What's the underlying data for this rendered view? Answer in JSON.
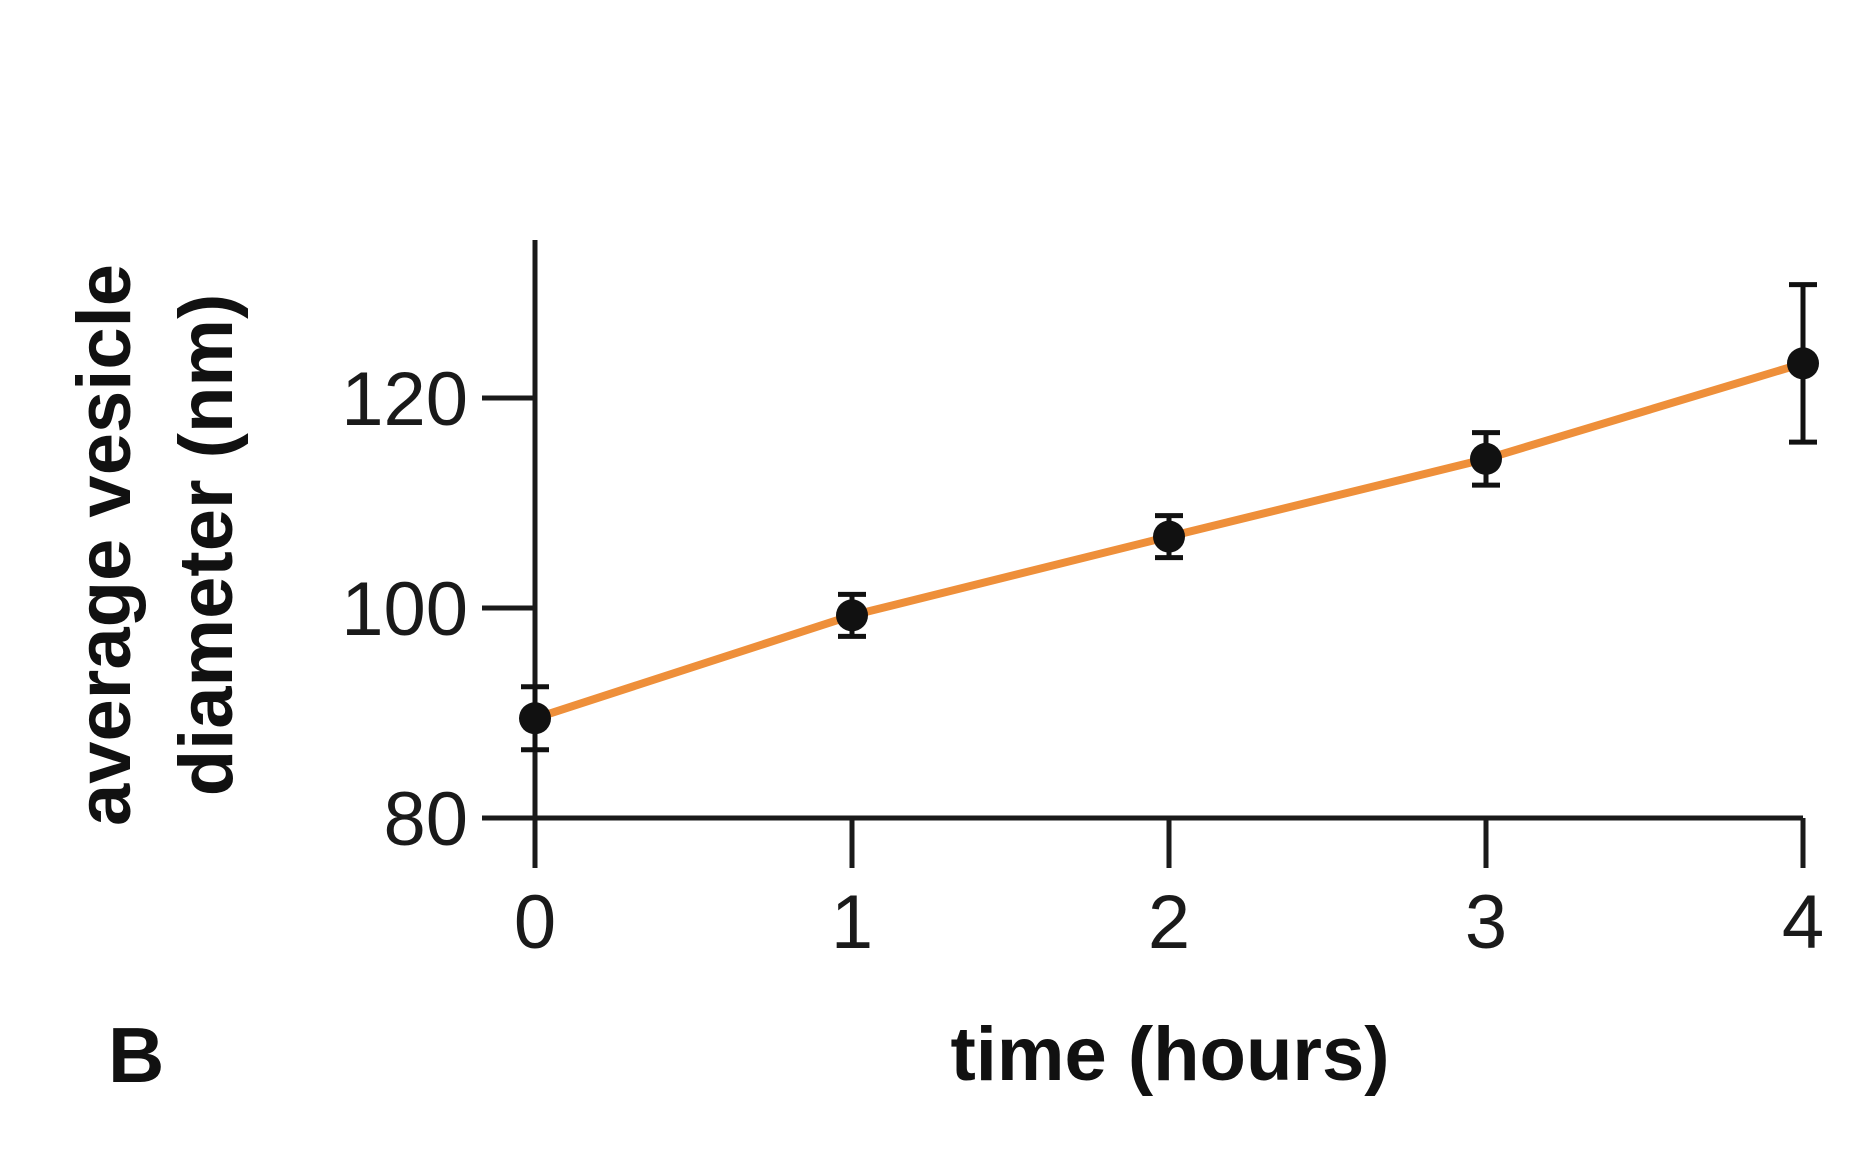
{
  "panel_label": "B",
  "colors": {
    "line": "#EE8F3A",
    "marker": "#111111",
    "axis": "#1a1a1a"
  },
  "chart_data": {
    "type": "line",
    "xlabel": "time (hours)",
    "ylabel_line1": "average vesicle",
    "ylabel_line2": "diameter (nm)",
    "x": [
      0,
      1,
      2,
      3,
      4
    ],
    "x_ticks": [
      "0",
      "1",
      "2",
      "3",
      "4"
    ],
    "y_ticks": [
      "80",
      "100",
      "120"
    ],
    "y_tick_values": [
      80,
      100,
      120
    ],
    "xlim": [
      0,
      4
    ],
    "ylim": [
      80,
      130
    ],
    "grid": false,
    "series": [
      {
        "values": [
          89.5,
          99.3,
          106.8,
          114.2,
          123.3
        ],
        "error": [
          3,
          2,
          2,
          2.5,
          7.5
        ]
      }
    ]
  }
}
